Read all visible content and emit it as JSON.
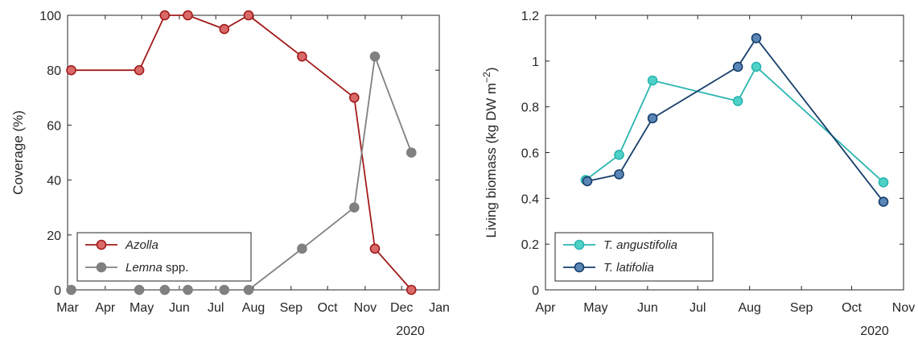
{
  "chart_data": [
    {
      "type": "line",
      "ylabel": "Coverage (%)",
      "ylim": [
        0,
        100
      ],
      "yticks": [
        "0",
        "20",
        "40",
        "60",
        "80",
        "100"
      ],
      "xlim": [
        "2020-03-01",
        "2021-01-01"
      ],
      "xticks": [
        {
          "date": "2020-03-01",
          "label": "Mar"
        },
        {
          "date": "2020-04-01",
          "label": "Apr"
        },
        {
          "date": "2020-05-01",
          "label": "May"
        },
        {
          "date": "2020-06-01",
          "label": "Jun"
        },
        {
          "date": "2020-07-01",
          "label": "Jul"
        },
        {
          "date": "2020-08-01",
          "label": "Aug"
        },
        {
          "date": "2020-09-01",
          "label": "Sep"
        },
        {
          "date": "2020-10-01",
          "label": "Oct"
        },
        {
          "date": "2020-11-01",
          "label": "Nov"
        },
        {
          "date": "2020-12-01",
          "label": "Dec"
        },
        {
          "date": "2021-01-01",
          "label": "Jan"
        }
      ],
      "year_label": "2020",
      "legend_position": "bottom-left",
      "series": [
        {
          "name_italic": "Azolla",
          "name_rest": "",
          "color": "#a31b1b",
          "fill": "#d96a6a",
          "points": [
            [
              "2020-03-04",
              80
            ],
            [
              "2020-04-29",
              80
            ],
            [
              "2020-05-20",
              100
            ],
            [
              "2020-06-08",
              100
            ],
            [
              "2020-07-08",
              95
            ],
            [
              "2020-07-28",
              100
            ],
            [
              "2020-09-10",
              85
            ],
            [
              "2020-10-23",
              70
            ],
            [
              "2020-11-09",
              15
            ],
            [
              "2020-12-09",
              0
            ]
          ]
        },
        {
          "name_italic": "Lemna",
          "name_rest": " spp.",
          "color": "#808080",
          "fill": "#808080",
          "points": [
            [
              "2020-03-04",
              0
            ],
            [
              "2020-04-29",
              0
            ],
            [
              "2020-05-20",
              0
            ],
            [
              "2020-06-08",
              0
            ],
            [
              "2020-07-08",
              0
            ],
            [
              "2020-07-28",
              0
            ],
            [
              "2020-09-10",
              15
            ],
            [
              "2020-10-23",
              30
            ],
            [
              "2020-11-09",
              85
            ],
            [
              "2020-12-09",
              50
            ]
          ]
        }
      ]
    },
    {
      "type": "line",
      "ylabel_main": "Living biomass (kg DW m",
      "ylabel_sup": "−2",
      "ylabel_end": ")",
      "ylim": [
        0,
        1.2
      ],
      "yticks": [
        "0",
        "0.2",
        "0.4",
        "0.6",
        "0.8",
        "1",
        "1.2"
      ],
      "xlim": [
        "2020-04-01",
        "2020-11-01"
      ],
      "xticks": [
        {
          "date": "2020-04-01",
          "label": "Apr"
        },
        {
          "date": "2020-05-01",
          "label": "May"
        },
        {
          "date": "2020-06-01",
          "label": "Jun"
        },
        {
          "date": "2020-07-01",
          "label": "Jul"
        },
        {
          "date": "2020-08-01",
          "label": "Aug"
        },
        {
          "date": "2020-09-01",
          "label": "Sep"
        },
        {
          "date": "2020-10-01",
          "label": "Oct"
        },
        {
          "date": "2020-11-01",
          "label": "Nov"
        }
      ],
      "year_label": "2020",
      "legend_position": "bottom-left",
      "series": [
        {
          "name_italic": "T. angustifolia",
          "name_rest": "",
          "color": "#2bb5b0",
          "fill": "#4fd1c8",
          "points": [
            [
              "2020-04-25",
              0.48
            ],
            [
              "2020-05-15",
              0.59
            ],
            [
              "2020-06-04",
              0.915
            ],
            [
              "2020-07-25",
              0.825
            ],
            [
              "2020-08-05",
              0.975
            ],
            [
              "2020-10-20",
              0.47
            ]
          ]
        },
        {
          "name_italic": "T. latifolia",
          "name_rest": "",
          "color": "#163f6b",
          "fill": "#5b87b8",
          "points": [
            [
              "2020-04-26",
              0.475
            ],
            [
              "2020-05-15",
              0.505
            ],
            [
              "2020-06-04",
              0.75
            ],
            [
              "2020-07-25",
              0.975
            ],
            [
              "2020-08-05",
              1.1
            ],
            [
              "2020-10-20",
              0.385
            ]
          ]
        }
      ]
    }
  ]
}
